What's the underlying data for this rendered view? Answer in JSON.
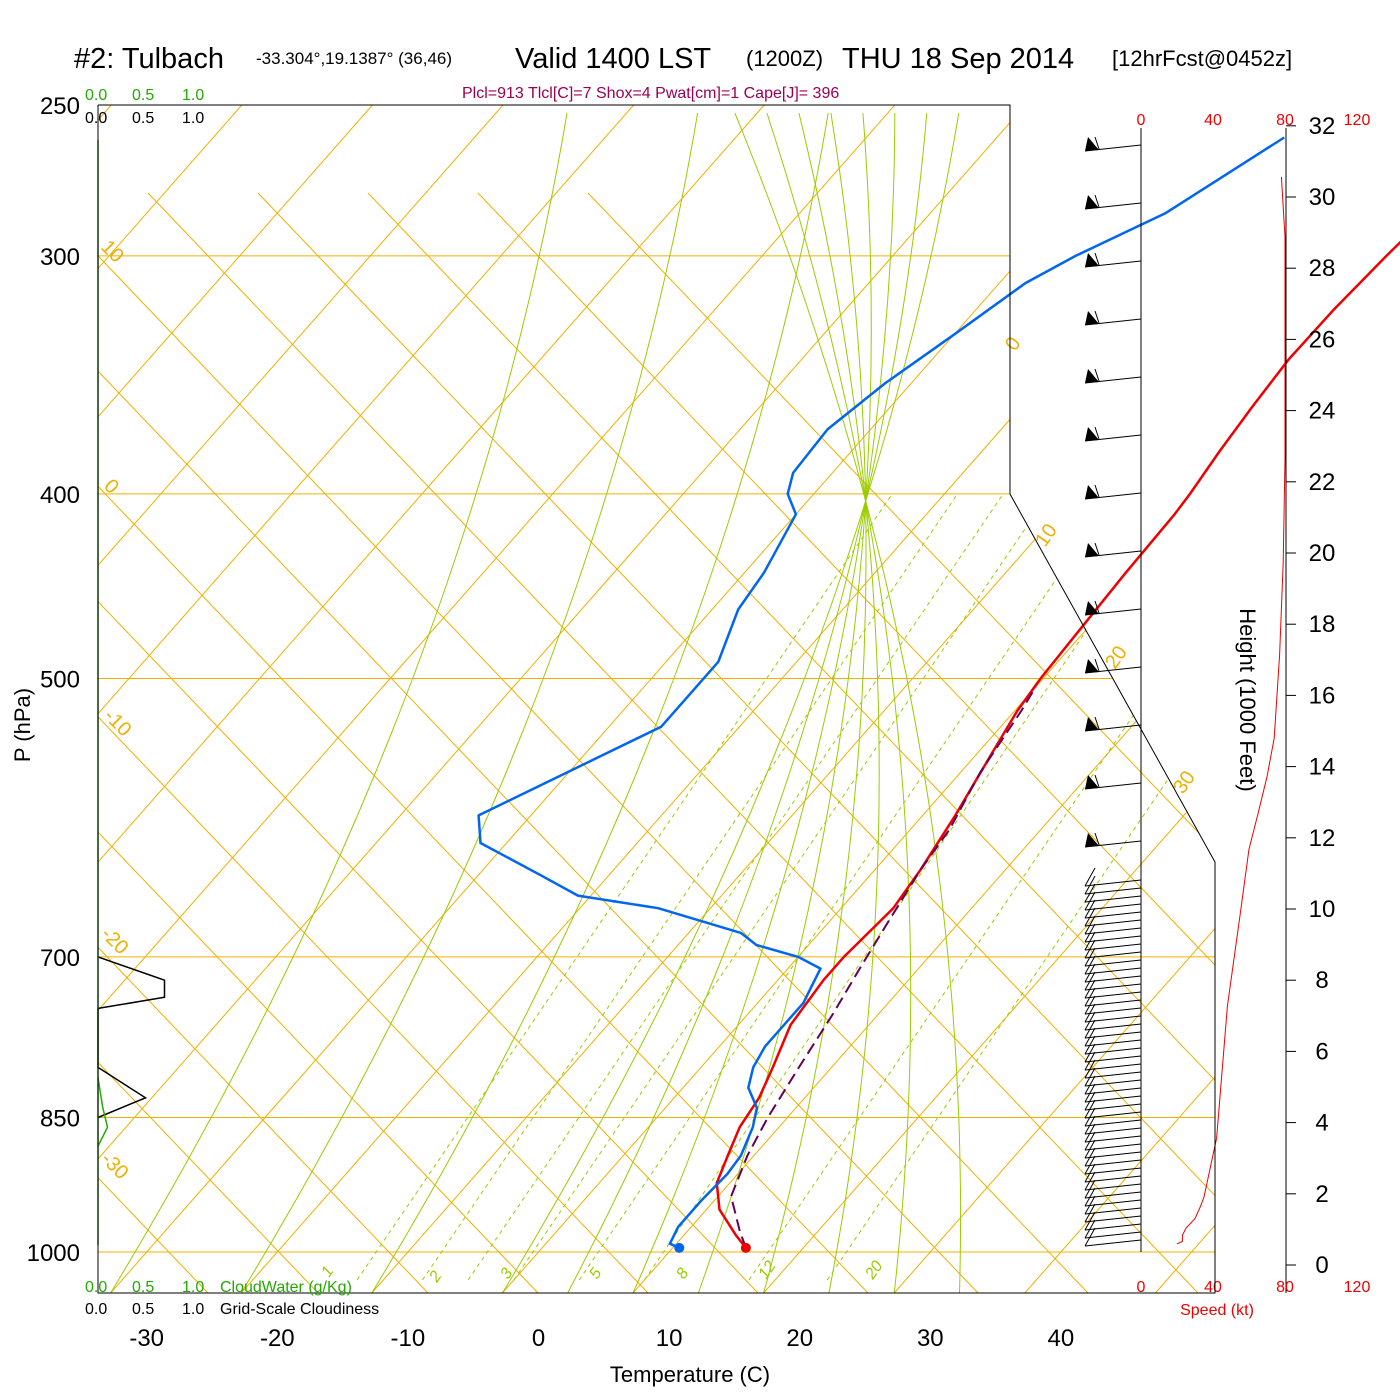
{
  "header": {
    "station": "#2: Tulbach",
    "coords": "-33.304°,19.1387° (36,46)",
    "valid": "Valid 1400 LST",
    "utc": "(1200Z)",
    "date": "THU 18 Sep 2014",
    "forecast": "[12hrFcst@0452z]",
    "diagnostics": "Plcl=913 Tlcl[C]=7 Shox=4 Pwat[cm]=1 Cape[J]= 396"
  },
  "colors": {
    "temperature": "#ee0000",
    "dewpoint": "#0066ee",
    "parcel": "#660055",
    "isotherm_isobar": "#f0b000",
    "moist_adiabat": "#99cc00",
    "cloudwater": "#22aa00",
    "cloudiness": "#000000",
    "windspeed": "#ee0000"
  },
  "legend": {
    "cloudwater_label": "CloudWater (g/Kg)",
    "cloudiness_label": "Grid-Scale Cloudiness",
    "scale_top_green": [
      "0.0",
      "0.5",
      "1.0"
    ],
    "scale_top_black": [
      "0.0",
      "0.5",
      "1.0"
    ],
    "scale_bottom_green": [
      "0.0",
      "0.5",
      "1.0"
    ],
    "scale_bottom_black": [
      "0.0",
      "0.5",
      "1.0"
    ]
  },
  "chart_data": {
    "type": "line",
    "xlabel": "Temperature (C)",
    "ylabel": "P (hPa)",
    "x_ticks": [
      "-30",
      "-20",
      "-10",
      "0",
      "10",
      "20",
      "30",
      "40"
    ],
    "pressure_ticks": [
      "250",
      "300",
      "400",
      "500",
      "700",
      "850",
      "1000"
    ],
    "isotherm_labels": [
      "10",
      "0",
      "-10",
      "-20",
      "-30",
      "0",
      "10",
      "20",
      "30"
    ],
    "mixing_ratio_labels": [
      "1",
      "2",
      "3",
      "5",
      "8",
      "12",
      "20"
    ],
    "series": [
      {
        "name": "Temperature",
        "points": [
          [
            15.6,
            995
          ],
          [
            14,
            980
          ],
          [
            11,
            950
          ],
          [
            9,
            920
          ],
          [
            8,
            890
          ],
          [
            7,
            860
          ],
          [
            6.5,
            830
          ],
          [
            5.5,
            800
          ],
          [
            4,
            760
          ],
          [
            3.5,
            720
          ],
          [
            3.5,
            700
          ],
          [
            4,
            660
          ],
          [
            3.5,
            630
          ],
          [
            2.5,
            590
          ],
          [
            1.2,
            550
          ],
          [
            0.2,
            520
          ],
          [
            -0.2,
            500
          ],
          [
            -0.5,
            470
          ],
          [
            -0.8,
            440
          ],
          [
            -1,
            410
          ],
          [
            -1.2,
            400
          ],
          [
            -1.8,
            380
          ],
          [
            -2.3,
            360
          ],
          [
            -2.7,
            340
          ],
          [
            -2.6,
            320
          ],
          [
            -2.2,
            300
          ],
          [
            -1.9,
            290
          ],
          [
            -1,
            270
          ],
          [
            -0.1,
            255
          ]
        ]
      },
      {
        "name": "Dew point",
        "points": [
          [
            10.5,
            995
          ],
          [
            9.5,
            990
          ],
          [
            9,
            970
          ],
          [
            9,
            940
          ],
          [
            9.2,
            910
          ],
          [
            9,
            890
          ],
          [
            8,
            860
          ],
          [
            7,
            840
          ],
          [
            5,
            820
          ],
          [
            4,
            800
          ],
          [
            3.5,
            780
          ],
          [
            3.5,
            740
          ],
          [
            3,
            725
          ],
          [
            2.5,
            710
          ],
          [
            0,
            700
          ],
          [
            -4,
            690
          ],
          [
            -6,
            680
          ],
          [
            -14,
            660
          ],
          [
            -21,
            650
          ],
          [
            -25,
            635
          ],
          [
            -32,
            610
          ],
          [
            -34,
            590
          ],
          [
            -26,
            530
          ],
          [
            -26,
            510
          ],
          [
            -26,
            490
          ],
          [
            -28,
            460
          ],
          [
            -28.5,
            440
          ],
          [
            -30,
            410
          ],
          [
            -32,
            400
          ],
          [
            -33,
            390
          ],
          [
            -33.3,
            370
          ],
          [
            -32,
            350
          ],
          [
            -30,
            330
          ],
          [
            -28,
            310
          ],
          [
            -26,
            300
          ],
          [
            -22,
            285
          ],
          [
            -18,
            260
          ]
        ]
      },
      {
        "name": "Parcel",
        "points": [
          [
            15.6,
            995
          ],
          [
            14,
            975
          ],
          [
            11,
            935
          ],
          [
            9.5,
            890
          ],
          [
            8.5,
            850
          ],
          [
            7.5,
            800
          ],
          [
            6.5,
            750
          ],
          [
            5.5,
            710
          ],
          [
            4.5,
            670
          ],
          [
            3.5,
            630
          ],
          [
            3,
            600
          ],
          [
            1.5,
            560
          ],
          [
            0.5,
            520
          ],
          [
            0,
            505
          ]
        ]
      }
    ],
    "surface_temperature": 15.6,
    "surface_dewpoint": 10.5,
    "cloudiness_profile": [
      [
        0,
        700
      ],
      [
        0.7,
        720
      ],
      [
        0.7,
        735
      ],
      [
        0,
        745
      ],
      [
        0,
        800
      ],
      [
        0.5,
        830
      ],
      [
        0,
        850
      ]
    ],
    "cloudwater_profile": [
      [
        0,
        810
      ],
      [
        0.05,
        840
      ],
      [
        0.1,
        860
      ],
      [
        0,
        880
      ]
    ],
    "wind_speed_axis": {
      "ticks": [
        "0",
        "40",
        "80",
        "120"
      ],
      "label": "Speed (kt)",
      "profile_kt": [
        [
          20,
          1
        ],
        [
          23,
          3
        ],
        [
          23,
          8
        ],
        [
          25,
          14
        ],
        [
          30,
          22
        ],
        [
          33,
          32
        ],
        [
          35,
          40
        ],
        [
          42,
          100
        ],
        [
          48,
          150
        ],
        [
          55,
          180
        ],
        [
          60,
          200
        ],
        [
          65,
          210
        ],
        [
          70,
          220
        ],
        [
          74,
          230
        ],
        [
          77,
          250
        ],
        [
          79,
          270
        ],
        [
          80,
          290
        ],
        [
          80,
          300
        ],
        [
          80,
          315
        ],
        [
          80,
          325
        ],
        [
          78,
          333
        ]
      ]
    },
    "height_axis": {
      "label": "Height (1000 Feet)",
      "ticks": [
        "0",
        "2",
        "4",
        "6",
        "8",
        "10",
        "12",
        "14",
        "16",
        "18",
        "20",
        "22",
        "24",
        "26",
        "28",
        "30",
        "32"
      ]
    }
  }
}
